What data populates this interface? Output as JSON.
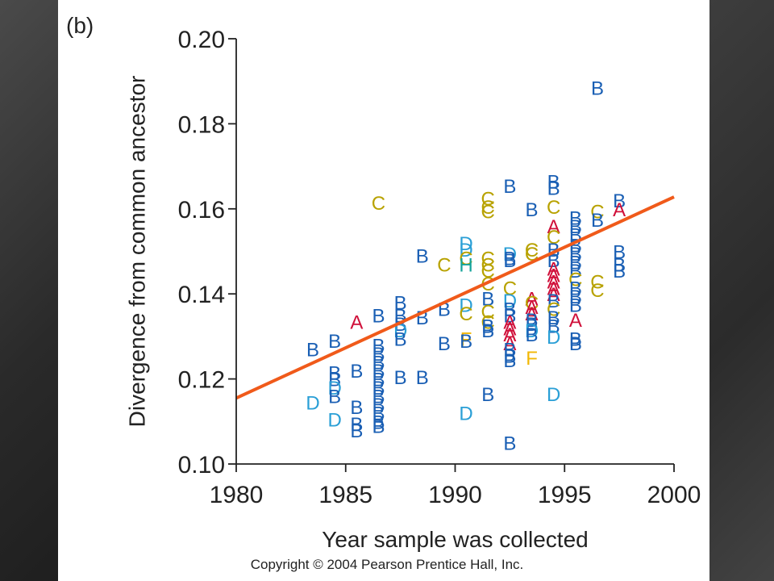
{
  "panel_label": "(b)",
  "copyright": "Copyright © 2004 Pearson Prentice Hall, Inc.",
  "colors": {
    "B": "#1a5fb4",
    "C": "#b8a200",
    "D": "#2a9fd6",
    "A": "#d0103a",
    "F": "#f2b705",
    "H": "#14a39a",
    "fit_line": "#f05a1a"
  },
  "chart_data": {
    "type": "scatter",
    "xlabel": "Year sample was collected",
    "ylabel": "Divergence from common ancestor",
    "xlim": [
      1980,
      2000
    ],
    "ylim": [
      0.1,
      0.2
    ],
    "xticks": [
      "1980",
      "1985",
      "1990",
      "1995",
      "2000"
    ],
    "yticks": [
      "0.10",
      "0.12",
      "0.14",
      "0.16",
      "0.18",
      "0.20"
    ],
    "grid": false,
    "fit_line": {
      "x": [
        1980,
        2000
      ],
      "y": [
        0.1155,
        0.1628
      ]
    },
    "points": [
      {
        "x": 1983.5,
        "y": 0.1265,
        "label": "B"
      },
      {
        "x": 1983.5,
        "y": 0.114,
        "label": "D"
      },
      {
        "x": 1984.5,
        "y": 0.1285,
        "label": "B"
      },
      {
        "x": 1984.5,
        "y": 0.121,
        "label": "B"
      },
      {
        "x": 1984.5,
        "y": 0.1195,
        "label": "B"
      },
      {
        "x": 1984.5,
        "y": 0.1175,
        "label": "D"
      },
      {
        "x": 1984.5,
        "y": 0.1155,
        "label": "B"
      },
      {
        "x": 1984.5,
        "y": 0.11,
        "label": "D"
      },
      {
        "x": 1985.5,
        "y": 0.133,
        "label": "A"
      },
      {
        "x": 1985.5,
        "y": 0.1215,
        "label": "B"
      },
      {
        "x": 1985.5,
        "y": 0.113,
        "label": "B"
      },
      {
        "x": 1985.5,
        "y": 0.109,
        "label": "B"
      },
      {
        "x": 1985.5,
        "y": 0.1075,
        "label": "B"
      },
      {
        "x": 1986.5,
        "y": 0.161,
        "label": "C"
      },
      {
        "x": 1986.5,
        "y": 0.1345,
        "label": "B"
      },
      {
        "x": 1986.5,
        "y": 0.1275,
        "label": "B"
      },
      {
        "x": 1986.5,
        "y": 0.1255,
        "label": "B"
      },
      {
        "x": 1986.5,
        "y": 0.1235,
        "label": "B"
      },
      {
        "x": 1986.5,
        "y": 0.1215,
        "label": "B"
      },
      {
        "x": 1986.5,
        "y": 0.1195,
        "label": "B"
      },
      {
        "x": 1986.5,
        "y": 0.1175,
        "label": "B"
      },
      {
        "x": 1986.5,
        "y": 0.1155,
        "label": "B"
      },
      {
        "x": 1986.5,
        "y": 0.1135,
        "label": "B"
      },
      {
        "x": 1986.5,
        "y": 0.1115,
        "label": "B"
      },
      {
        "x": 1986.5,
        "y": 0.1095,
        "label": "B"
      },
      {
        "x": 1986.5,
        "y": 0.1085,
        "label": "B"
      },
      {
        "x": 1987.5,
        "y": 0.1375,
        "label": "B"
      },
      {
        "x": 1987.5,
        "y": 0.1345,
        "label": "B"
      },
      {
        "x": 1987.5,
        "y": 0.1325,
        "label": "B"
      },
      {
        "x": 1987.5,
        "y": 0.131,
        "label": "D"
      },
      {
        "x": 1987.5,
        "y": 0.129,
        "label": "B"
      },
      {
        "x": 1987.5,
        "y": 0.12,
        "label": "B"
      },
      {
        "x": 1988.5,
        "y": 0.134,
        "label": "B"
      },
      {
        "x": 1988.5,
        "y": 0.12,
        "label": "B"
      },
      {
        "x": 1988.5,
        "y": 0.1485,
        "label": "B"
      },
      {
        "x": 1989.5,
        "y": 0.1465,
        "label": "C"
      },
      {
        "x": 1989.5,
        "y": 0.136,
        "label": "B"
      },
      {
        "x": 1989.5,
        "y": 0.128,
        "label": "B"
      },
      {
        "x": 1990.5,
        "y": 0.1515,
        "label": "D"
      },
      {
        "x": 1990.5,
        "y": 0.15,
        "label": "D"
      },
      {
        "x": 1990.5,
        "y": 0.148,
        "label": "C"
      },
      {
        "x": 1990.5,
        "y": 0.1465,
        "label": "H"
      },
      {
        "x": 1990.5,
        "y": 0.137,
        "label": "D"
      },
      {
        "x": 1990.5,
        "y": 0.135,
        "label": "C"
      },
      {
        "x": 1990.5,
        "y": 0.129,
        "label": "F"
      },
      {
        "x": 1990.5,
        "y": 0.1285,
        "label": "B"
      },
      {
        "x": 1990.5,
        "y": 0.1115,
        "label": "D"
      },
      {
        "x": 1991.5,
        "y": 0.162,
        "label": "C"
      },
      {
        "x": 1991.5,
        "y": 0.16,
        "label": "C"
      },
      {
        "x": 1991.5,
        "y": 0.159,
        "label": "C"
      },
      {
        "x": 1991.5,
        "y": 0.148,
        "label": "C"
      },
      {
        "x": 1991.5,
        "y": 0.1465,
        "label": "C"
      },
      {
        "x": 1991.5,
        "y": 0.145,
        "label": "C"
      },
      {
        "x": 1991.5,
        "y": 0.142,
        "label": "C"
      },
      {
        "x": 1991.5,
        "y": 0.1385,
        "label": "B"
      },
      {
        "x": 1991.5,
        "y": 0.1355,
        "label": "C"
      },
      {
        "x": 1991.5,
        "y": 0.133,
        "label": "C"
      },
      {
        "x": 1991.5,
        "y": 0.132,
        "label": "B"
      },
      {
        "x": 1991.5,
        "y": 0.131,
        "label": "B"
      },
      {
        "x": 1991.5,
        "y": 0.116,
        "label": "B"
      },
      {
        "x": 1992.5,
        "y": 0.165,
        "label": "B"
      },
      {
        "x": 1992.5,
        "y": 0.149,
        "label": "D"
      },
      {
        "x": 1992.5,
        "y": 0.148,
        "label": "B"
      },
      {
        "x": 1992.5,
        "y": 0.1475,
        "label": "B"
      },
      {
        "x": 1992.5,
        "y": 0.141,
        "label": "C"
      },
      {
        "x": 1992.5,
        "y": 0.138,
        "label": "D"
      },
      {
        "x": 1992.5,
        "y": 0.136,
        "label": "B"
      },
      {
        "x": 1992.5,
        "y": 0.1345,
        "label": "B"
      },
      {
        "x": 1992.5,
        "y": 0.133,
        "label": "A"
      },
      {
        "x": 1992.5,
        "y": 0.1315,
        "label": "A"
      },
      {
        "x": 1992.5,
        "y": 0.13,
        "label": "A"
      },
      {
        "x": 1992.5,
        "y": 0.128,
        "label": "A"
      },
      {
        "x": 1992.5,
        "y": 0.1265,
        "label": "B"
      },
      {
        "x": 1992.5,
        "y": 0.125,
        "label": "B"
      },
      {
        "x": 1992.5,
        "y": 0.124,
        "label": "B"
      },
      {
        "x": 1992.5,
        "y": 0.1045,
        "label": "B"
      },
      {
        "x": 1993.5,
        "y": 0.1595,
        "label": "B"
      },
      {
        "x": 1993.5,
        "y": 0.15,
        "label": "C"
      },
      {
        "x": 1993.5,
        "y": 0.149,
        "label": "C"
      },
      {
        "x": 1993.5,
        "y": 0.1385,
        "label": "A"
      },
      {
        "x": 1993.5,
        "y": 0.1375,
        "label": "C"
      },
      {
        "x": 1993.5,
        "y": 0.1365,
        "label": "A"
      },
      {
        "x": 1993.5,
        "y": 0.135,
        "label": "A"
      },
      {
        "x": 1993.5,
        "y": 0.1335,
        "label": "B"
      },
      {
        "x": 1993.5,
        "y": 0.1325,
        "label": "B"
      },
      {
        "x": 1993.5,
        "y": 0.131,
        "label": "D"
      },
      {
        "x": 1993.5,
        "y": 0.13,
        "label": "B"
      },
      {
        "x": 1993.5,
        "y": 0.1245,
        "label": "F"
      },
      {
        "x": 1994.5,
        "y": 0.166,
        "label": "B"
      },
      {
        "x": 1994.5,
        "y": 0.1645,
        "label": "B"
      },
      {
        "x": 1994.5,
        "y": 0.16,
        "label": "C"
      },
      {
        "x": 1994.5,
        "y": 0.1555,
        "label": "A"
      },
      {
        "x": 1994.5,
        "y": 0.153,
        "label": "C"
      },
      {
        "x": 1994.5,
        "y": 0.15,
        "label": "B"
      },
      {
        "x": 1994.5,
        "y": 0.1475,
        "label": "B"
      },
      {
        "x": 1994.5,
        "y": 0.1455,
        "label": "A"
      },
      {
        "x": 1994.5,
        "y": 0.144,
        "label": "A"
      },
      {
        "x": 1994.5,
        "y": 0.1425,
        "label": "A"
      },
      {
        "x": 1994.5,
        "y": 0.141,
        "label": "A"
      },
      {
        "x": 1994.5,
        "y": 0.1395,
        "label": "A"
      },
      {
        "x": 1994.5,
        "y": 0.138,
        "label": "B"
      },
      {
        "x": 1994.5,
        "y": 0.136,
        "label": "C"
      },
      {
        "x": 1994.5,
        "y": 0.134,
        "label": "B"
      },
      {
        "x": 1994.5,
        "y": 0.132,
        "label": "B"
      },
      {
        "x": 1994.5,
        "y": 0.1295,
        "label": "D"
      },
      {
        "x": 1994.5,
        "y": 0.116,
        "label": "D"
      },
      {
        "x": 1995.5,
        "y": 0.1575,
        "label": "B"
      },
      {
        "x": 1995.5,
        "y": 0.1555,
        "label": "B"
      },
      {
        "x": 1995.5,
        "y": 0.1535,
        "label": "B"
      },
      {
        "x": 1995.5,
        "y": 0.151,
        "label": "B"
      },
      {
        "x": 1995.5,
        "y": 0.149,
        "label": "B"
      },
      {
        "x": 1995.5,
        "y": 0.147,
        "label": "B"
      },
      {
        "x": 1995.5,
        "y": 0.145,
        "label": "B"
      },
      {
        "x": 1995.5,
        "y": 0.143,
        "label": "C"
      },
      {
        "x": 1995.5,
        "y": 0.141,
        "label": "B"
      },
      {
        "x": 1995.5,
        "y": 0.139,
        "label": "B"
      },
      {
        "x": 1995.5,
        "y": 0.137,
        "label": "B"
      },
      {
        "x": 1995.5,
        "y": 0.1335,
        "label": "A"
      },
      {
        "x": 1995.5,
        "y": 0.129,
        "label": "B"
      },
      {
        "x": 1995.5,
        "y": 0.128,
        "label": "B"
      },
      {
        "x": 1996.5,
        "y": 0.188,
        "label": "B"
      },
      {
        "x": 1996.5,
        "y": 0.159,
        "label": "C"
      },
      {
        "x": 1996.5,
        "y": 0.157,
        "label": "B"
      },
      {
        "x": 1996.5,
        "y": 0.1425,
        "label": "C"
      },
      {
        "x": 1996.5,
        "y": 0.1405,
        "label": "C"
      },
      {
        "x": 1997.5,
        "y": 0.1615,
        "label": "B"
      },
      {
        "x": 1997.5,
        "y": 0.1595,
        "label": "A"
      },
      {
        "x": 1997.5,
        "y": 0.1495,
        "label": "B"
      },
      {
        "x": 1997.5,
        "y": 0.1465,
        "label": "B"
      },
      {
        "x": 1997.5,
        "y": 0.145,
        "label": "B"
      }
    ]
  }
}
